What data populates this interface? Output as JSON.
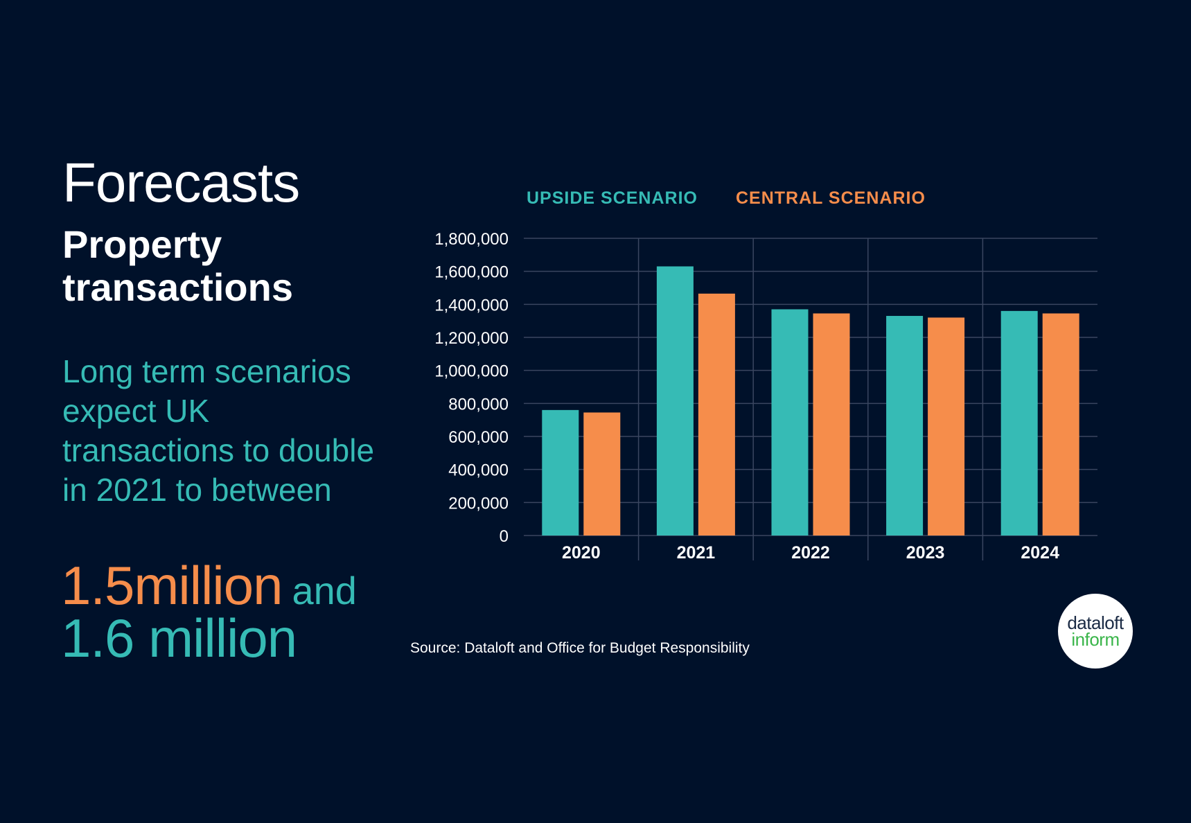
{
  "heading": "Forecasts",
  "subtitle": "Property transactions",
  "body_text": "Long term scenarios expect UK transactions to double in 2021 to between",
  "highlight": {
    "value1": "1.5million",
    "connector": "and",
    "value2": "1.6 million"
  },
  "source": "Source: Dataloft and Office for Budget Responsibility",
  "logo": {
    "top": "dataloft",
    "bottom": "inform"
  },
  "colors": {
    "background": "#00112a",
    "upside": "#36bbb5",
    "central": "#f68d4b"
  },
  "chart_data": {
    "type": "bar",
    "categories": [
      "2020",
      "2021",
      "2022",
      "2023",
      "2024"
    ],
    "series": [
      {
        "name": "UPSIDE SCENARIO",
        "values": [
          760000,
          1630000,
          1370000,
          1330000,
          1360000
        ],
        "color": "#36bbb5"
      },
      {
        "name": "CENTRAL SCENARIO",
        "values": [
          745000,
          1465000,
          1345000,
          1320000,
          1345000
        ],
        "color": "#f68d4b"
      }
    ],
    "yticks": [
      "0",
      "200,000",
      "400,000",
      "600,000",
      "800,000",
      "1,000,000",
      "1,200,000",
      "1,400,000",
      "1,600,000",
      "1,800,000"
    ],
    "ylim": [
      0,
      1800000
    ],
    "grid": true,
    "legend_position": "top-left"
  }
}
